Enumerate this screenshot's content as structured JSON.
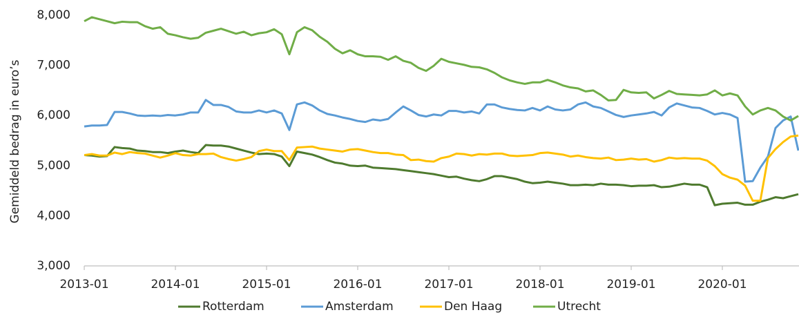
{
  "chart_data": {
    "type": "line",
    "y_label": "Gemiddeld bedrag in euro’s",
    "categories": [
      "2013-01",
      null,
      null,
      null,
      null,
      null,
      null,
      null,
      null,
      null,
      null,
      null,
      "2014-01",
      null,
      null,
      null,
      null,
      null,
      null,
      null,
      null,
      null,
      null,
      null,
      "2015-01",
      null,
      null,
      null,
      null,
      null,
      null,
      null,
      null,
      null,
      null,
      null,
      "2016-01",
      null,
      null,
      null,
      null,
      null,
      null,
      null,
      null,
      null,
      null,
      null,
      "2017-01",
      null,
      null,
      null,
      null,
      null,
      null,
      null,
      null,
      null,
      null,
      null,
      "2018-01",
      null,
      null,
      null,
      null,
      null,
      null,
      null,
      null,
      null,
      null,
      null,
      "2019-01",
      null,
      null,
      null,
      null,
      null,
      null,
      null,
      null,
      null,
      null,
      null,
      "2020-01",
      null,
      null,
      null,
      null,
      null,
      null,
      null,
      null,
      null,
      null
    ],
    "ylim": [
      3000,
      8000
    ],
    "yticks": [
      {
        "value": 3000,
        "label": "3,000"
      },
      {
        "value": 4000,
        "label": "4,000"
      },
      {
        "value": 5000,
        "label": "5,000"
      },
      {
        "value": 6000,
        "label": "6,000"
      },
      {
        "value": 7000,
        "label": "7,000"
      },
      {
        "value": 8000,
        "label": "8,000"
      }
    ],
    "grid": false,
    "legend": "bottom",
    "series": [
      {
        "name": "Rotterdam",
        "color": "#4e7a2e",
        "values": [
          5210,
          5200,
          5180,
          5190,
          5370,
          5350,
          5340,
          5300,
          5290,
          5270,
          5270,
          5250,
          5280,
          5300,
          5270,
          5250,
          5410,
          5400,
          5400,
          5380,
          5340,
          5300,
          5260,
          5230,
          5240,
          5230,
          5180,
          4990,
          5280,
          5250,
          5220,
          5170,
          5110,
          5060,
          5040,
          5000,
          4990,
          5000,
          4960,
          4950,
          4940,
          4930,
          4910,
          4890,
          4870,
          4850,
          4830,
          4800,
          4770,
          4780,
          4740,
          4710,
          4690,
          4730,
          4790,
          4790,
          4760,
          4730,
          4680,
          4650,
          4660,
          4680,
          4660,
          4640,
          4610,
          4610,
          4620,
          4610,
          4640,
          4620,
          4620,
          4610,
          4590,
          4600,
          4600,
          4610,
          4570,
          4580,
          4610,
          4640,
          4620,
          4620,
          4570,
          4210,
          4240,
          4250,
          4260,
          4220,
          4220,
          4280,
          4320,
          4370,
          4350,
          4390,
          4430
        ]
      },
      {
        "name": "Amsterdam",
        "color": "#5b9bd5",
        "values": [
          5780,
          5800,
          5800,
          5810,
          6070,
          6070,
          6040,
          6000,
          5990,
          6000,
          5990,
          6010,
          6000,
          6020,
          6060,
          6060,
          6310,
          6210,
          6210,
          6170,
          6080,
          6060,
          6060,
          6100,
          6060,
          6100,
          6040,
          5710,
          6220,
          6260,
          6200,
          6100,
          6030,
          6000,
          5960,
          5930,
          5890,
          5870,
          5920,
          5900,
          5930,
          6060,
          6180,
          6100,
          6010,
          5980,
          6020,
          6000,
          6090,
          6090,
          6060,
          6080,
          6040,
          6220,
          6220,
          6160,
          6130,
          6110,
          6100,
          6150,
          6100,
          6180,
          6120,
          6100,
          6120,
          6220,
          6260,
          6180,
          6150,
          6080,
          6010,
          5970,
          6000,
          6020,
          6040,
          6070,
          6000,
          6160,
          6240,
          6200,
          6160,
          6150,
          6090,
          6020,
          6050,
          6020,
          5950,
          4680,
          4690,
          4960,
          5180,
          5750,
          5900,
          5980,
          5300
        ]
      },
      {
        "name": "Den Haag",
        "color": "#ffc000",
        "values": [
          5210,
          5230,
          5200,
          5200,
          5260,
          5230,
          5270,
          5250,
          5240,
          5200,
          5160,
          5200,
          5250,
          5210,
          5200,
          5230,
          5230,
          5240,
          5170,
          5130,
          5100,
          5130,
          5170,
          5290,
          5320,
          5290,
          5290,
          5110,
          5360,
          5370,
          5380,
          5340,
          5320,
          5300,
          5280,
          5320,
          5330,
          5300,
          5270,
          5250,
          5250,
          5220,
          5210,
          5110,
          5120,
          5090,
          5080,
          5150,
          5180,
          5240,
          5230,
          5200,
          5230,
          5220,
          5240,
          5240,
          5200,
          5190,
          5200,
          5210,
          5250,
          5260,
          5240,
          5220,
          5180,
          5200,
          5170,
          5150,
          5140,
          5160,
          5110,
          5120,
          5140,
          5120,
          5130,
          5080,
          5110,
          5160,
          5140,
          5150,
          5140,
          5140,
          5100,
          4990,
          4830,
          4760,
          4720,
          4600,
          4300,
          4300,
          5150,
          5330,
          5470,
          5580,
          5600
        ]
      },
      {
        "name": "Utrecht",
        "color": "#70ad47",
        "values": [
          7880,
          7960,
          7920,
          7880,
          7840,
          7870,
          7860,
          7860,
          7780,
          7730,
          7760,
          7630,
          7600,
          7560,
          7530,
          7550,
          7650,
          7690,
          7730,
          7680,
          7630,
          7670,
          7600,
          7640,
          7660,
          7720,
          7620,
          7220,
          7660,
          7760,
          7700,
          7570,
          7470,
          7330,
          7240,
          7300,
          7220,
          7180,
          7180,
          7170,
          7110,
          7180,
          7090,
          7050,
          6950,
          6890,
          6990,
          7130,
          7070,
          7040,
          7010,
          6970,
          6960,
          6920,
          6850,
          6760,
          6700,
          6660,
          6630,
          6660,
          6660,
          6710,
          6660,
          6600,
          6560,
          6540,
          6480,
          6500,
          6410,
          6300,
          6310,
          6510,
          6460,
          6450,
          6460,
          6340,
          6410,
          6490,
          6430,
          6420,
          6410,
          6400,
          6420,
          6500,
          6400,
          6440,
          6400,
          6180,
          6020,
          6100,
          6150,
          6100,
          5980,
          5900,
          5990
        ]
      }
    ]
  }
}
